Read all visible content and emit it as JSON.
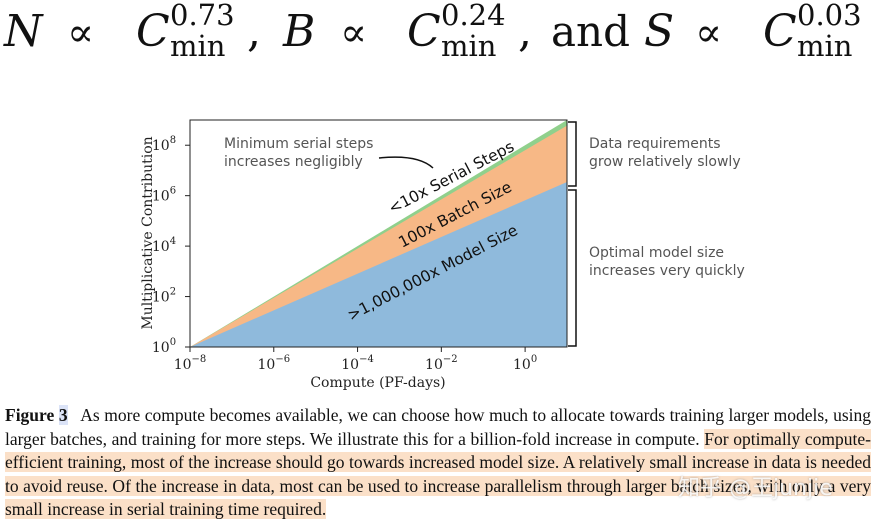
{
  "formula": {
    "n_var": "N",
    "b_var": "B",
    "s_var": "S",
    "prop": "∝",
    "c_var": "C",
    "subscript": "min",
    "n_exp": "0.73",
    "b_exp": "0.24",
    "s_exp": "0.03",
    "comma": ",",
    "and_word": "and"
  },
  "chart_data": {
    "type": "area",
    "stacked": true,
    "log_x": true,
    "log_y": true,
    "xlabel": "Compute (PF-days)",
    "ylabel": "Multiplicative Contribution",
    "xlim": [
      1e-08,
      10
    ],
    "ylim": [
      1,
      1000000000.0
    ],
    "x_ticks": [
      "10",
      "10",
      "10",
      "10",
      "10"
    ],
    "x_tick_exps": [
      "−8",
      "−6",
      "−4",
      "−2",
      "0"
    ],
    "y_ticks": [
      "10",
      "10",
      "10",
      "10",
      "10"
    ],
    "y_tick_exps": [
      "0",
      "2",
      "4",
      "6",
      "8"
    ],
    "series": [
      {
        "band_label": ">1,000,000x Model Size",
        "color": "#8fbadc",
        "top": [
          [
            1e-08,
            1
          ],
          [
            10,
            3500000.0
          ]
        ]
      },
      {
        "band_label": "100x Batch Size",
        "color": "#f7b886",
        "top": [
          [
            1e-08,
            1
          ],
          [
            10,
            600000000.0
          ]
        ]
      },
      {
        "band_label": "<10x Serial Steps",
        "color": "#90d08c",
        "top": [
          [
            1e-08,
            1
          ],
          [
            10,
            1000000000.0
          ]
        ]
      }
    ],
    "annotations": {
      "serial_note": [
        "Minimum serial steps",
        "increases negligibly"
      ],
      "data_note": [
        "Data requirements",
        "grow relatively slowly"
      ],
      "model_note": [
        "Optimal model size",
        "increases very quickly"
      ]
    }
  },
  "caption": {
    "label": "Figure",
    "number": "3",
    "plain": "As more compute becomes available, we can choose how much to allocate towards training larger models, using larger batches, and training for more steps. We illustrate this for a billion-fold increase in compute.",
    "highlighted": "For optimally compute-efficient training, most of the increase should go towards increased model size. A relatively small increase in data is needed to avoid reuse. Of the increase in data, most can be used to increase parallelism through larger batch sizes, with only a very small increase in serial training time required."
  },
  "watermark": "知乎 @王junjie"
}
